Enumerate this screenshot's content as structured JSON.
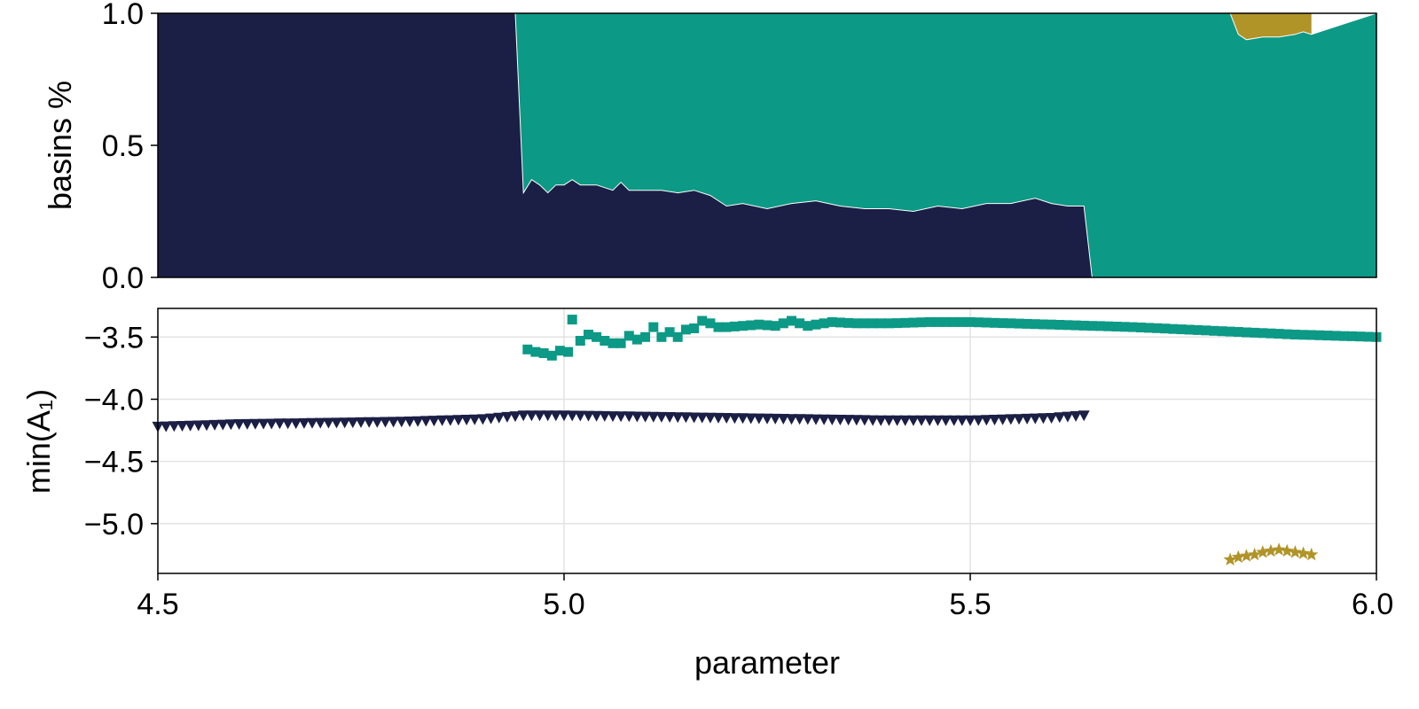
{
  "colors": {
    "navy": "#1b1f45",
    "teal": "#0c9985",
    "gold": "#b09428",
    "grid": "#e3e3e3"
  },
  "x_ticks": [
    "4.5",
    "5.0",
    "5.5",
    "6.0"
  ],
  "chart_data": [
    {
      "type": "area",
      "ylabel": "basins %",
      "xlim": [
        4.5,
        6.0
      ],
      "ylim": [
        0,
        1
      ],
      "y_ticks": [
        "0.0",
        "0.5",
        "1.0"
      ],
      "grid": false,
      "series": [
        {
          "color_key": "navy",
          "x": [
            4.5,
            4.94,
            4.95,
            4.96,
            4.97,
            4.98,
            4.99,
            5.0,
            5.01,
            5.02,
            5.04,
            5.06,
            5.07,
            5.08,
            5.1,
            5.12,
            5.14,
            5.16,
            5.18,
            5.2,
            5.22,
            5.25,
            5.28,
            5.31,
            5.34,
            5.37,
            5.4,
            5.43,
            5.46,
            5.49,
            5.52,
            5.55,
            5.58,
            5.6,
            5.62,
            5.64,
            5.65,
            6.0
          ],
          "top": [
            1.0,
            1.0,
            0.32,
            0.37,
            0.35,
            0.32,
            0.35,
            0.35,
            0.37,
            0.35,
            0.35,
            0.33,
            0.36,
            0.33,
            0.33,
            0.33,
            0.32,
            0.33,
            0.31,
            0.27,
            0.28,
            0.26,
            0.28,
            0.29,
            0.27,
            0.26,
            0.26,
            0.25,
            0.27,
            0.26,
            0.28,
            0.28,
            0.3,
            0.28,
            0.27,
            0.27,
            0.0,
            0.0
          ]
        },
        {
          "color_key": "teal",
          "x": [
            4.5,
            4.94,
            5.82,
            5.83,
            5.84,
            5.86,
            5.88,
            5.9,
            5.91,
            5.92,
            6.0
          ],
          "top": [
            1.0,
            1.0,
            1.0,
            0.92,
            0.9,
            0.91,
            0.91,
            0.92,
            0.93,
            0.92,
            1.0
          ]
        },
        {
          "color_key": "gold",
          "x": [
            5.82,
            5.92
          ],
          "top": [
            1.0,
            1.0
          ]
        }
      ]
    },
    {
      "type": "scatter",
      "ylabel": "min(A₁)",
      "xlabel": "parameter",
      "xlim": [
        4.5,
        6.0
      ],
      "ylim": [
        -5.4,
        -3.27
      ],
      "y_ticks": [
        "−5.0",
        "−4.5",
        "−4.0",
        "−3.5"
      ],
      "grid": true,
      "series": [
        {
          "marker": "square",
          "color_key": "teal",
          "x": [
            4.955,
            4.965,
            4.975,
            4.985,
            4.995,
            5.005,
            5.01,
            5.02,
            5.03,
            5.04,
            5.05,
            5.06,
            5.07,
            5.08,
            5.09,
            5.1,
            5.11,
            5.12,
            5.13,
            5.14,
            5.15,
            5.16,
            5.17,
            5.18,
            5.19,
            5.2,
            5.22,
            5.24,
            5.26,
            5.28,
            5.3,
            5.33,
            5.36,
            5.4,
            5.45,
            5.5,
            5.6,
            5.7,
            5.8,
            5.9,
            6.0
          ],
          "y": [
            -3.6,
            -3.62,
            -3.63,
            -3.65,
            -3.61,
            -3.62,
            -3.36,
            -3.53,
            -3.48,
            -3.5,
            -3.53,
            -3.55,
            -3.55,
            -3.49,
            -3.52,
            -3.5,
            -3.42,
            -3.5,
            -3.46,
            -3.5,
            -3.44,
            -3.43,
            -3.37,
            -3.39,
            -3.42,
            -3.42,
            -3.41,
            -3.4,
            -3.41,
            -3.37,
            -3.41,
            -3.38,
            -3.39,
            -3.39,
            -3.38,
            -3.38,
            -3.4,
            -3.42,
            -3.45,
            -3.48,
            -3.5
          ]
        },
        {
          "marker": "triangle-down",
          "color_key": "navy",
          "x": [
            4.5,
            4.6,
            4.7,
            4.8,
            4.9,
            4.95,
            5.0,
            5.1,
            5.2,
            5.3,
            5.4,
            5.5,
            5.55,
            5.6,
            5.64
          ],
          "y": [
            -4.22,
            -4.2,
            -4.19,
            -4.18,
            -4.16,
            -4.13,
            -4.13,
            -4.14,
            -4.15,
            -4.16,
            -4.17,
            -4.17,
            -4.16,
            -4.15,
            -4.13
          ]
        },
        {
          "marker": "star",
          "color_key": "gold",
          "x": [
            5.82,
            5.83,
            5.84,
            5.85,
            5.86,
            5.87,
            5.88,
            5.89,
            5.9,
            5.91,
            5.92
          ],
          "y": [
            -5.29,
            -5.27,
            -5.26,
            -5.25,
            -5.23,
            -5.22,
            -5.21,
            -5.22,
            -5.23,
            -5.24,
            -5.25
          ]
        }
      ]
    }
  ]
}
